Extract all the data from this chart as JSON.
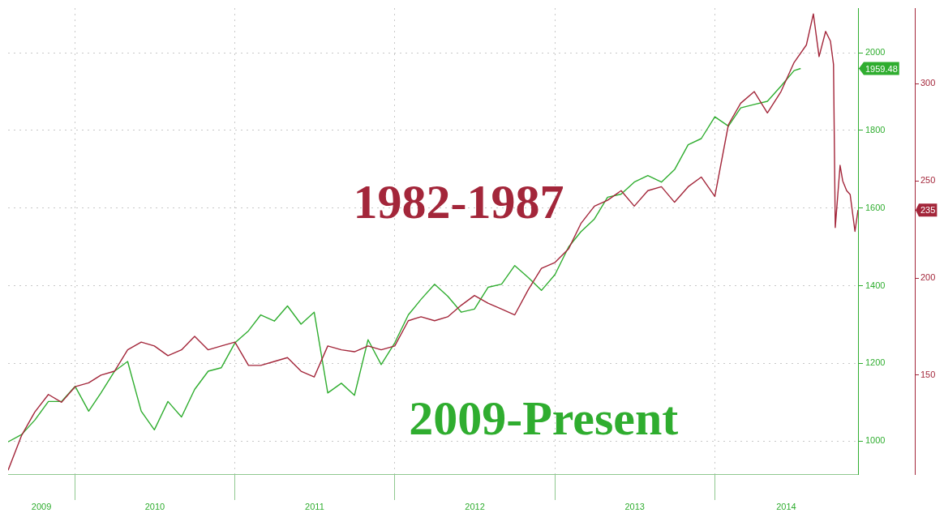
{
  "chart_data": {
    "type": "line",
    "grid": true,
    "marker": "none",
    "xlim": [
      "2009-08-01",
      "2014-11-24"
    ],
    "xticks": [
      {
        "value": "2009-10-16",
        "label": "2009"
      },
      {
        "value": "2010-01-01",
        "label": null
      },
      {
        "value": "2010-07-02",
        "label": "2010"
      },
      {
        "value": "2011-01-01",
        "label": null
      },
      {
        "value": "2011-07-02",
        "label": "2011"
      },
      {
        "value": "2012-01-01",
        "label": null
      },
      {
        "value": "2012-07-02",
        "label": "2012"
      },
      {
        "value": "2013-01-01",
        "label": null
      },
      {
        "value": "2013-07-02",
        "label": "2013"
      },
      {
        "value": "2014-01-01",
        "label": null
      },
      {
        "value": "2014-06-13",
        "label": "2014"
      }
    ],
    "ylim": [
      915,
      2115
    ],
    "yticks": [
      1000,
      1200,
      1400,
      1600,
      1800,
      2000,
      1959.48
    ],
    "y2lim": [
      99,
      339
    ],
    "y2ticks": [
      150,
      200,
      250,
      300,
      235
    ],
    "series": [
      {
        "name": "1982-1987",
        "color": "#a3263a",
        "axis": "y2",
        "x": [
          "2009-08-01",
          "2009-09-01",
          "2009-10-01",
          "2009-11-01",
          "2009-12-01",
          "2010-01-01",
          "2010-02-01",
          "2010-03-01",
          "2010-04-01",
          "2010-05-01",
          "2010-06-01",
          "2010-07-01",
          "2010-08-01",
          "2010-09-01",
          "2010-10-01",
          "2010-11-01",
          "2010-12-01",
          "2011-01-01",
          "2011-02-01",
          "2011-03-01",
          "2011-04-01",
          "2011-05-01",
          "2011-06-01",
          "2011-07-01",
          "2011-08-01",
          "2011-09-01",
          "2011-10-01",
          "2011-11-01",
          "2011-12-01",
          "2012-01-01",
          "2012-02-01",
          "2012-03-01",
          "2012-04-01",
          "2012-05-01",
          "2012-06-01",
          "2012-07-01",
          "2012-08-01",
          "2012-09-01",
          "2012-10-01",
          "2012-11-01",
          "2012-12-01",
          "2013-01-01",
          "2013-02-01",
          "2013-03-01",
          "2013-04-01",
          "2013-05-01",
          "2013-06-01",
          "2013-07-01",
          "2013-08-01",
          "2013-09-01",
          "2013-10-01",
          "2013-11-01",
          "2013-12-01",
          "2014-01-01",
          "2014-02-01",
          "2014-03-01",
          "2014-04-01",
          "2014-05-01",
          "2014-06-01",
          "2014-07-01",
          "2014-07-29",
          "2014-08-14",
          "2014-08-27",
          "2014-09-11",
          "2014-09-22",
          "2014-09-29",
          "2014-10-03",
          "2014-10-14",
          "2014-10-20",
          "2014-10-29",
          "2014-11-06",
          "2014-11-17",
          "2014-11-24"
        ],
        "values": [
          101,
          119,
          131,
          140,
          136,
          144,
          146,
          150,
          152,
          163,
          167,
          165,
          160,
          163,
          170,
          163,
          165,
          167,
          155,
          155,
          157,
          159,
          152,
          149,
          165,
          163,
          162,
          165,
          163,
          165,
          178,
          180,
          178,
          180,
          186,
          191,
          187,
          184,
          181,
          194,
          205,
          208,
          215,
          228,
          237,
          240,
          245,
          237,
          245,
          247,
          239,
          247,
          252,
          242,
          279,
          290,
          296,
          285,
          296,
          311,
          320,
          336,
          314,
          327,
          322,
          310,
          226,
          258,
          250,
          245,
          243,
          224,
          235
        ]
      },
      {
        "name": "2009-Present",
        "color": "#2fad2f",
        "x": [
          "2009-08-01",
          "2009-09-01",
          "2009-10-01",
          "2009-11-01",
          "2009-12-01",
          "2010-01-01",
          "2010-02-01",
          "2010-03-01",
          "2010-04-01",
          "2010-05-01",
          "2010-06-01",
          "2010-07-01",
          "2010-08-01",
          "2010-09-01",
          "2010-10-01",
          "2010-11-01",
          "2010-12-01",
          "2011-01-01",
          "2011-02-01",
          "2011-03-01",
          "2011-04-01",
          "2011-05-01",
          "2011-06-01",
          "2011-07-01",
          "2011-08-01",
          "2011-09-01",
          "2011-10-01",
          "2011-11-01",
          "2011-12-01",
          "2012-01-01",
          "2012-02-01",
          "2012-03-01",
          "2012-04-01",
          "2012-05-01",
          "2012-06-01",
          "2012-07-01",
          "2012-08-01",
          "2012-09-01",
          "2012-10-01",
          "2012-11-01",
          "2012-12-01",
          "2013-01-01",
          "2013-02-01",
          "2013-03-01",
          "2013-04-01",
          "2013-05-01",
          "2013-06-01",
          "2013-07-01",
          "2013-08-01",
          "2013-09-01",
          "2013-10-01",
          "2013-11-01",
          "2013-12-01",
          "2014-01-01",
          "2014-02-01",
          "2014-03-01",
          "2014-04-01",
          "2014-05-01",
          "2014-06-01",
          "2014-07-01",
          "2014-07-16"
        ],
        "values": [
          998,
          1017,
          1054,
          1102,
          1102,
          1141,
          1077,
          1124,
          1180,
          1205,
          1077,
          1029,
          1102,
          1062,
          1133,
          1180,
          1189,
          1253,
          1284,
          1325,
          1309,
          1348,
          1301,
          1332,
          1124,
          1149,
          1118,
          1261,
          1197,
          1253,
          1325,
          1365,
          1404,
          1373,
          1332,
          1340,
          1396,
          1404,
          1452,
          1421,
          1388,
          1429,
          1500,
          1539,
          1572,
          1628,
          1636,
          1667,
          1684,
          1667,
          1699,
          1763,
          1779,
          1835,
          1811,
          1858,
          1867,
          1875,
          1914,
          1954,
          1959.48
        ]
      }
    ]
  }
}
